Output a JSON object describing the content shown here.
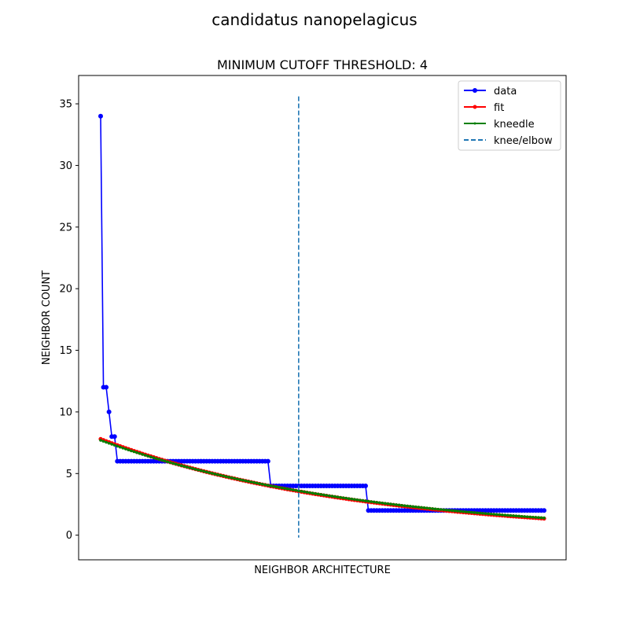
{
  "chart_data": {
    "type": "line",
    "suptitle": "candidatus nanopelagicus",
    "title": "MINIMUM CUTOFF THRESHOLD: 4",
    "xlabel": "NEIGHBOR ARCHITECTURE",
    "ylabel": "NEIGHBOR COUNT",
    "xticks_visible": false,
    "ylim": [
      -2,
      37.3
    ],
    "yticks": [
      0,
      5,
      10,
      15,
      20,
      25,
      30,
      35
    ],
    "grid": false,
    "legend_position": "top-right",
    "x_count": 160,
    "series": [
      {
        "name": "data",
        "color": "#0000ff",
        "marker": "circle",
        "steps": [
          {
            "from": 0,
            "to": 0,
            "value": 34
          },
          {
            "from": 1,
            "to": 2,
            "value": 12
          },
          {
            "from": 3,
            "to": 3,
            "value": 10
          },
          {
            "from": 4,
            "to": 5,
            "value": 8
          },
          {
            "from": 6,
            "to": 60,
            "value": 6
          },
          {
            "from": 61,
            "to": 95,
            "value": 4
          },
          {
            "from": 96,
            "to": 159,
            "value": 2
          }
        ]
      },
      {
        "name": "fit",
        "color": "#ff0000",
        "marker": "point",
        "start": 7.8,
        "end": 1.35,
        "curve": "exponential-decay"
      },
      {
        "name": "kneedle",
        "color": "#008000",
        "marker": "point",
        "start": 7.7,
        "end": 1.4,
        "curve": "exponential-decay"
      },
      {
        "name": "knee/elbow",
        "color": "#1f77b4",
        "style": "dashed",
        "x": 71,
        "y_range": [
          -0.2,
          35.6
        ]
      }
    ]
  }
}
